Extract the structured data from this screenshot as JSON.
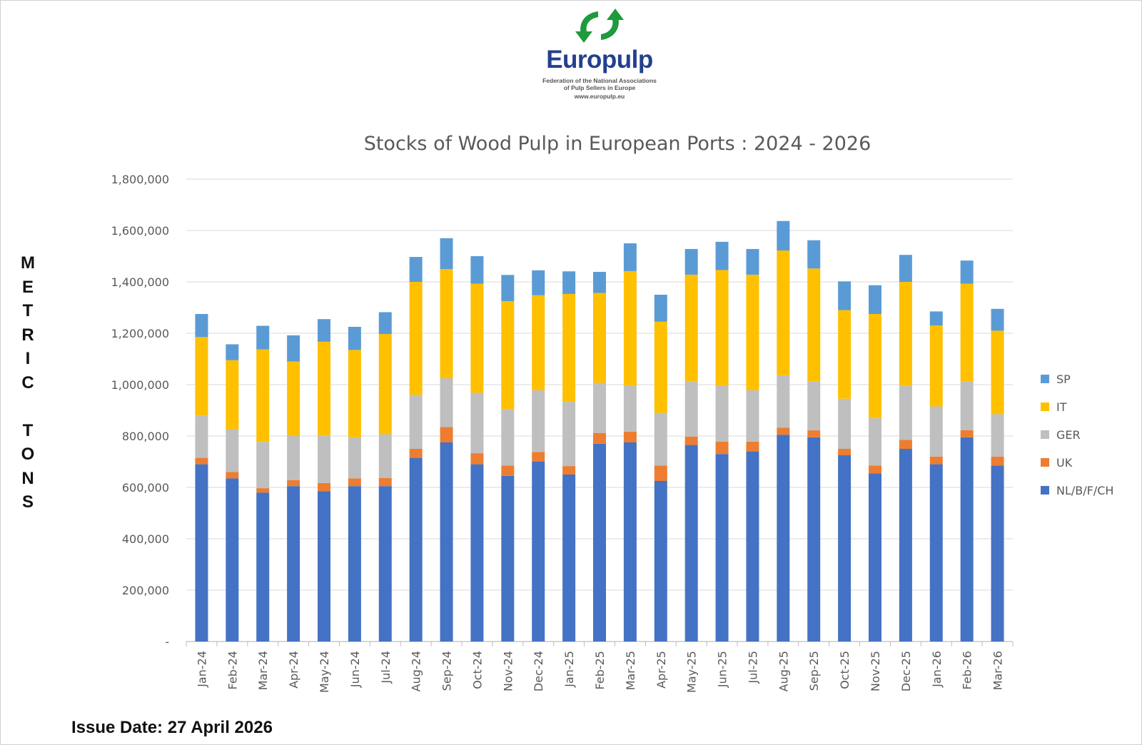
{
  "logo": {
    "name": "Europulp",
    "subtitle_line1": "Federation of the National Associations",
    "subtitle_line2": "of Pulp Sellers in Europe",
    "website": "www.europulp.eu",
    "brand_color": "#23408e",
    "arrow_color": "#1f9a3c"
  },
  "ylabel_letters": [
    "M",
    "E",
    "T",
    "R",
    "I",
    "C",
    "",
    "T",
    "O",
    "N",
    "S"
  ],
  "issue_date": "Issue Date: 27 April 2026",
  "chart_data": {
    "type": "bar",
    "stacked": true,
    "title": "Stocks of Wood Pulp in European Ports : 2024 - 2026",
    "ylabel": "METRIC TONS",
    "ylim": [
      0,
      1800000
    ],
    "yticks": [
      0,
      200000,
      400000,
      600000,
      800000,
      1000000,
      1200000,
      1400000,
      1600000,
      1800000
    ],
    "ytick_labels": [
      "-",
      "200,000",
      "400,000",
      "600,000",
      "800,000",
      "1,000,000",
      "1,200,000",
      "1,400,000",
      "1,600,000",
      "1,800,000"
    ],
    "grid": true,
    "legend_position": "right",
    "categories": [
      "Jan-24",
      "Feb-24",
      "Mar-24",
      "Apr-24",
      "May-24",
      "Jun-24",
      "Jul-24",
      "Aug-24",
      "Sep-24",
      "Oct-24",
      "Nov-24",
      "Dec-24",
      "Jan-25",
      "Feb-25",
      "Mar-25",
      "Apr-25",
      "May-25",
      "Jun-25",
      "Jul-25",
      "Aug-25",
      "Sep-25",
      "Oct-25",
      "Nov-25",
      "Dec-25",
      "Jan-26",
      "Feb-26",
      "Mar-26"
    ],
    "series": [
      {
        "name": "NL/B/F/CH",
        "color": "#4472c4",
        "values": [
          690000,
          635000,
          580000,
          605000,
          585000,
          605000,
          605000,
          715000,
          775000,
          690000,
          645000,
          700000,
          650000,
          770000,
          775000,
          625000,
          765000,
          730000,
          740000,
          805000,
          795000,
          725000,
          655000,
          750000,
          690000,
          795000,
          685000
        ]
      },
      {
        "name": "UK",
        "color": "#ed7d31",
        "values": [
          25000,
          25000,
          17000,
          23000,
          32000,
          30000,
          32000,
          35000,
          60000,
          43000,
          40000,
          38000,
          33000,
          42000,
          42000,
          60000,
          33000,
          48000,
          38000,
          27000,
          27000,
          25000,
          30000,
          35000,
          30000,
          28000,
          35000
        ]
      },
      {
        "name": "GER",
        "color": "#bfbfbf",
        "values": [
          165000,
          165000,
          180000,
          172000,
          185000,
          160000,
          170000,
          210000,
          190000,
          235000,
          220000,
          240000,
          250000,
          195000,
          180000,
          205000,
          215000,
          218000,
          200000,
          205000,
          190000,
          195000,
          185000,
          210000,
          195000,
          190000,
          165000
        ]
      },
      {
        "name": "IT",
        "color": "#ffc000",
        "values": [
          305000,
          270000,
          360000,
          290000,
          365000,
          340000,
          390000,
          440000,
          425000,
          425000,
          420000,
          370000,
          420000,
          350000,
          445000,
          355000,
          415000,
          450000,
          450000,
          485000,
          440000,
          345000,
          405000,
          405000,
          315000,
          380000,
          325000
        ]
      },
      {
        "name": "SP",
        "color": "#5b9bd5",
        "values": [
          90000,
          62000,
          92000,
          102000,
          88000,
          90000,
          85000,
          97000,
          120000,
          107000,
          102000,
          97000,
          88000,
          82000,
          108000,
          105000,
          100000,
          110000,
          100000,
          115000,
          110000,
          112000,
          112000,
          105000,
          55000,
          90000,
          85000
        ]
      }
    ]
  }
}
